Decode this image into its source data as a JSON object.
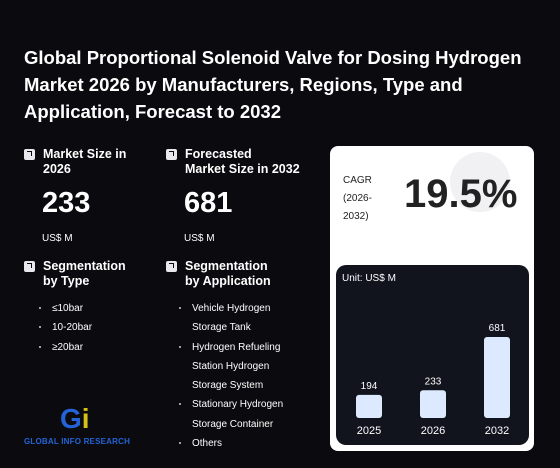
{
  "title": "Global Proportional Solenoid Valve for Dosing Hydrogen Market 2026 by Manufacturers, Regions, Type and Application, Forecast to 2032",
  "market_size": {
    "label_line1": "Market Size in",
    "label_line2": "2026",
    "value": "233",
    "unit": "US$ M"
  },
  "forecast_size": {
    "label_line1": "Forecasted",
    "label_line2": "Market Size in 2032",
    "value": "681",
    "unit": "US$ M"
  },
  "segment_type": {
    "label_line1": "Segmentation",
    "label_line2": "by Type",
    "items": [
      "≤10bar",
      "10-20bar",
      "≥20bar"
    ]
  },
  "segment_app": {
    "label_line1": "Segmentation",
    "label_line2": "by Application",
    "items": [
      [
        "Vehicle Hydrogen",
        "Storage Tank"
      ],
      [
        "Hydrogen Refueling",
        "Station Hydrogen",
        "Storage System"
      ],
      [
        "Stationary Hydrogen",
        "Storage Container"
      ],
      [
        "Others"
      ]
    ]
  },
  "cagr": {
    "label_line1": "CAGR",
    "label_line2": "(2026-",
    "label_line3": "2032)",
    "value": "19.5%"
  },
  "logo": {
    "mark": "Gi",
    "text": "GLOBAL INFO RESEARCH"
  },
  "colors": {
    "background": "#0b0b0f",
    "bar": "#dde9ff",
    "chart_bg": "#11131d",
    "logo_blue": "#2463d6",
    "logo_yellow": "#d4c21a"
  },
  "chart_data": {
    "type": "bar",
    "unit_label": "Unit: US$ M",
    "categories": [
      "2025",
      "2026",
      "2032"
    ],
    "values": [
      194,
      233,
      681
    ],
    "value_labels": [
      "194",
      "233",
      "681"
    ]
  }
}
